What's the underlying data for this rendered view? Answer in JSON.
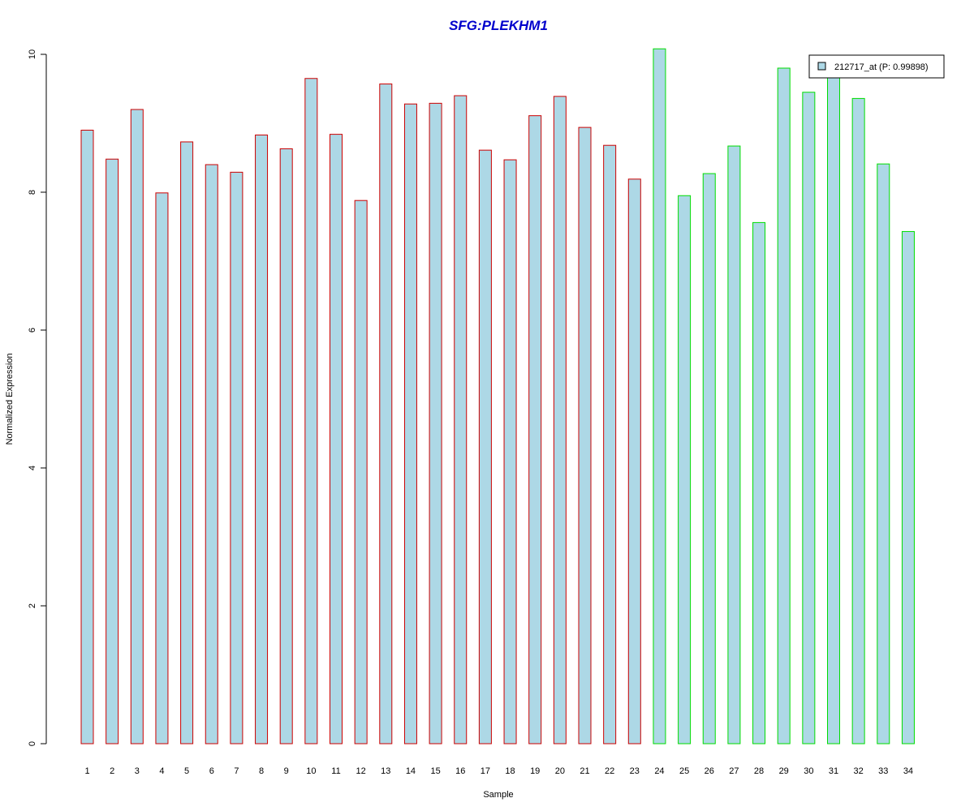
{
  "chart_data": {
    "type": "bar",
    "title": "SFG:PLEKHM1",
    "title_color": "#0000CC",
    "xlabel": "Sample",
    "ylabel": "Normalized Expression",
    "ylim": [
      0,
      10
    ],
    "y_ticks": [
      "0",
      "2",
      "4",
      "6",
      "8",
      "10"
    ],
    "categories": [
      "1",
      "2",
      "3",
      "4",
      "5",
      "6",
      "7",
      "8",
      "9",
      "10",
      "11",
      "12",
      "13",
      "14",
      "15",
      "16",
      "17",
      "18",
      "19",
      "20",
      "21",
      "22",
      "23",
      "24",
      "25",
      "26",
      "27",
      "28",
      "29",
      "30",
      "31",
      "32",
      "33",
      "34"
    ],
    "series": [
      {
        "name": "212717_at (P: 0.99898)",
        "fill": "#ADD8E6",
        "values": [
          8.9,
          8.48,
          9.2,
          7.99,
          8.73,
          8.4,
          8.29,
          8.83,
          8.63,
          9.65,
          8.84,
          7.88,
          9.57,
          9.28,
          9.29,
          9.4,
          8.61,
          8.47,
          9.11,
          9.39,
          8.94,
          8.68,
          8.19,
          10.08,
          7.95,
          8.27,
          8.67,
          7.56,
          9.8,
          9.45,
          9.67,
          9.36,
          8.41,
          7.43
        ]
      }
    ],
    "bar_outline_colors": [
      "#CC0000",
      "#CC0000",
      "#CC0000",
      "#CC0000",
      "#CC0000",
      "#CC0000",
      "#CC0000",
      "#CC0000",
      "#CC0000",
      "#CC0000",
      "#CC0000",
      "#CC0000",
      "#CC0000",
      "#CC0000",
      "#CC0000",
      "#CC0000",
      "#CC0000",
      "#CC0000",
      "#CC0000",
      "#CC0000",
      "#CC0000",
      "#CC0000",
      "#CC0000",
      "#00DD00",
      "#00DD00",
      "#00DD00",
      "#00DD00",
      "#00DD00",
      "#00DD00",
      "#00DD00",
      "#00DD00",
      "#00DD00",
      "#00DD00",
      "#00DD00"
    ],
    "legend": {
      "placement": "top-right",
      "label": "212717_at (P: 0.99898)"
    },
    "grid": false
  }
}
